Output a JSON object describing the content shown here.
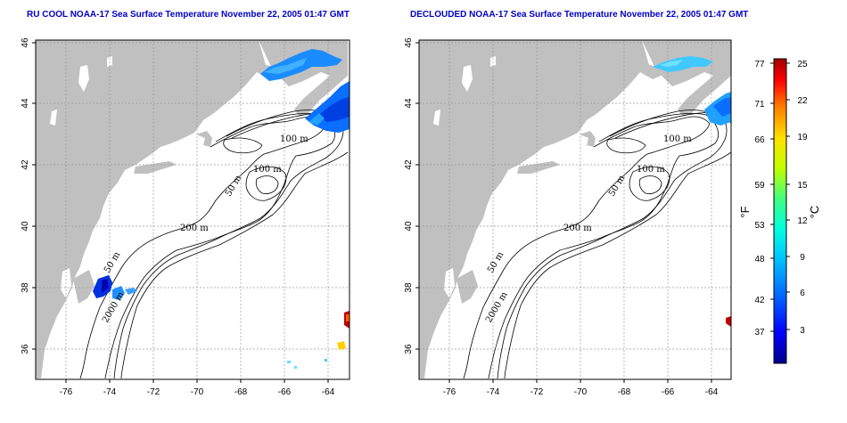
{
  "maps": [
    {
      "id": "left",
      "title": "RU COOL NOAA-17 Sea Surface Temperature November 22, 2005 01:47 GMT",
      "x_ticks": [
        "-76",
        "-74",
        "-72",
        "-70",
        "-68",
        "-66",
        "-64"
      ],
      "y_ticks": [
        "46",
        "44",
        "42",
        "40",
        "38",
        "36"
      ],
      "contour_labels": [
        "100 m",
        "100 m",
        "50 m",
        "200 m",
        "50 m",
        "2000 m"
      ]
    },
    {
      "id": "right",
      "title": "DECLOUDED NOAA-17 Sea Surface Temperature November 22, 2005 01:47 GMT",
      "x_ticks": [
        "-76",
        "-74",
        "-72",
        "-70",
        "-68",
        "-66",
        "-64"
      ],
      "y_ticks": [
        "46",
        "44",
        "42",
        "40",
        "38",
        "36"
      ],
      "contour_labels": [
        "100 m",
        "100 m",
        "50 m",
        "200 m",
        "50 m",
        "2000 m"
      ]
    }
  ],
  "colorbar": {
    "fahrenheit_ticks": [
      "77",
      "71",
      "66",
      "59",
      "53",
      "48",
      "42",
      "37"
    ],
    "celsius_ticks": [
      "25",
      "22",
      "19",
      "15",
      "12",
      "9",
      "6",
      "3"
    ],
    "fahrenheit_unit": "°F",
    "celsius_unit": "°C",
    "colors": [
      "#00008c",
      "#0000ff",
      "#0066ff",
      "#00c0ff",
      "#00ffe0",
      "#40ff80",
      "#c0ff00",
      "#ffe000",
      "#ff8000",
      "#ff0000",
      "#a00000"
    ]
  },
  "colors": {
    "land": "#c0c0c0",
    "ocean": "#ffffff",
    "title": "#0000c8"
  }
}
